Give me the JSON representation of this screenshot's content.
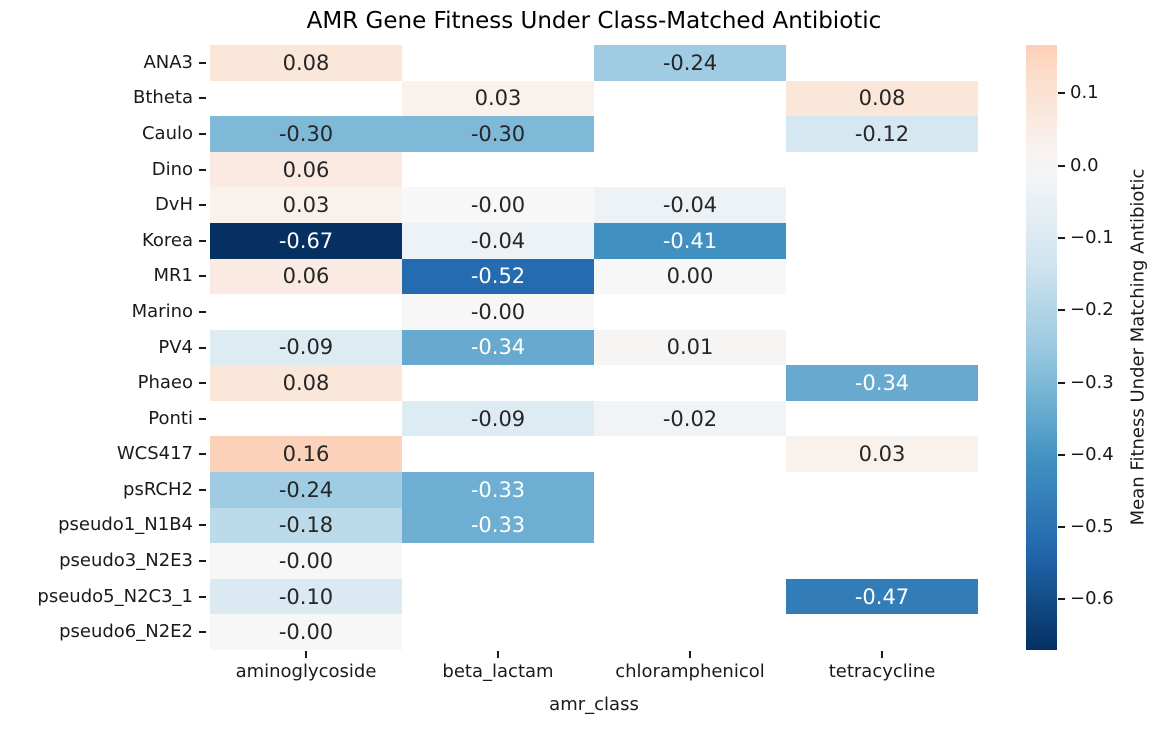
{
  "chart_data": {
    "type": "heatmap",
    "title": "AMR Gene Fitness Under Class-Matched Antibiotic",
    "xlabel": "amr_class",
    "ylabel": "",
    "colorbar_label": "Mean Fitness Under Matching Antibiotic",
    "cmap": "RdBu_r",
    "center": 0,
    "vmin": -0.67,
    "vmax": 0.167,
    "grid": false,
    "legend_position": "right-colorbar",
    "x_categories": [
      "aminoglycoside",
      "beta_lactam",
      "chloramphenicol",
      "tetracycline"
    ],
    "y_categories": [
      "ANA3",
      "Btheta",
      "Caulo",
      "Dino",
      "DvH",
      "Korea",
      "MR1",
      "Marino",
      "PV4",
      "Phaeo",
      "Ponti",
      "WCS417",
      "psRCH2",
      "pseudo1_N1B4",
      "pseudo3_N2E3",
      "pseudo5_N2C3_1",
      "pseudo6_N2E2"
    ],
    "values": [
      [
        0.08,
        null,
        -0.24,
        null
      ],
      [
        null,
        0.03,
        null,
        0.08
      ],
      [
        -0.3,
        -0.3,
        null,
        -0.12
      ],
      [
        0.06,
        null,
        null,
        null
      ],
      [
        0.03,
        -0.0,
        -0.04,
        null
      ],
      [
        -0.67,
        -0.04,
        -0.41,
        null
      ],
      [
        0.06,
        -0.52,
        0.0,
        null
      ],
      [
        null,
        -0.0,
        null,
        null
      ],
      [
        -0.09,
        -0.34,
        0.01,
        null
      ],
      [
        0.08,
        null,
        null,
        -0.34
      ],
      [
        null,
        -0.09,
        -0.02,
        null
      ],
      [
        0.16,
        null,
        null,
        0.03
      ],
      [
        -0.24,
        -0.33,
        null,
        null
      ],
      [
        -0.18,
        -0.33,
        null,
        null
      ],
      [
        -0.0,
        null,
        null,
        null
      ],
      [
        -0.1,
        null,
        null,
        -0.47
      ],
      [
        -0.0,
        null,
        null,
        null
      ]
    ],
    "labels": [
      [
        "0.08",
        "",
        "-0.24",
        ""
      ],
      [
        "",
        "0.03",
        "",
        "0.08"
      ],
      [
        "-0.30",
        "-0.30",
        "",
        "-0.12"
      ],
      [
        "0.06",
        "",
        "",
        ""
      ],
      [
        "0.03",
        "-0.00",
        "-0.04",
        ""
      ],
      [
        "-0.67",
        "-0.04",
        "-0.41",
        ""
      ],
      [
        "0.06",
        "-0.52",
        "0.00",
        ""
      ],
      [
        "",
        "-0.00",
        "",
        ""
      ],
      [
        "-0.09",
        "-0.34",
        "0.01",
        ""
      ],
      [
        "0.08",
        "",
        "",
        "-0.34"
      ],
      [
        "",
        "-0.09",
        "-0.02",
        ""
      ],
      [
        "0.16",
        "",
        "",
        "0.03"
      ],
      [
        "-0.24",
        "-0.33",
        "",
        ""
      ],
      [
        "-0.18",
        "-0.33",
        "",
        ""
      ],
      [
        "-0.00",
        "",
        "",
        ""
      ],
      [
        "-0.10",
        "",
        "",
        "-0.47"
      ],
      [
        "-0.00",
        "",
        "",
        ""
      ]
    ],
    "colorbar_ticks": [
      {
        "value": 0.1,
        "label": "0.1"
      },
      {
        "value": 0.0,
        "label": "0.0"
      },
      {
        "value": -0.1,
        "label": "−0.1"
      },
      {
        "value": -0.2,
        "label": "−0.2"
      },
      {
        "value": -0.3,
        "label": "−0.3"
      },
      {
        "value": -0.4,
        "label": "−0.4"
      },
      {
        "value": -0.5,
        "label": "−0.5"
      },
      {
        "value": -0.6,
        "label": "−0.6"
      }
    ]
  },
  "colors": {
    "background": "#ffffff",
    "annotation_dark": "#262626",
    "annotation_light": "#ffffff",
    "axis_text": "#1a1a1a",
    "cmap_negative_extreme": "#053061",
    "cmap_center": "#f7f7f7",
    "cmap_positive_extreme": "#facdb6"
  }
}
